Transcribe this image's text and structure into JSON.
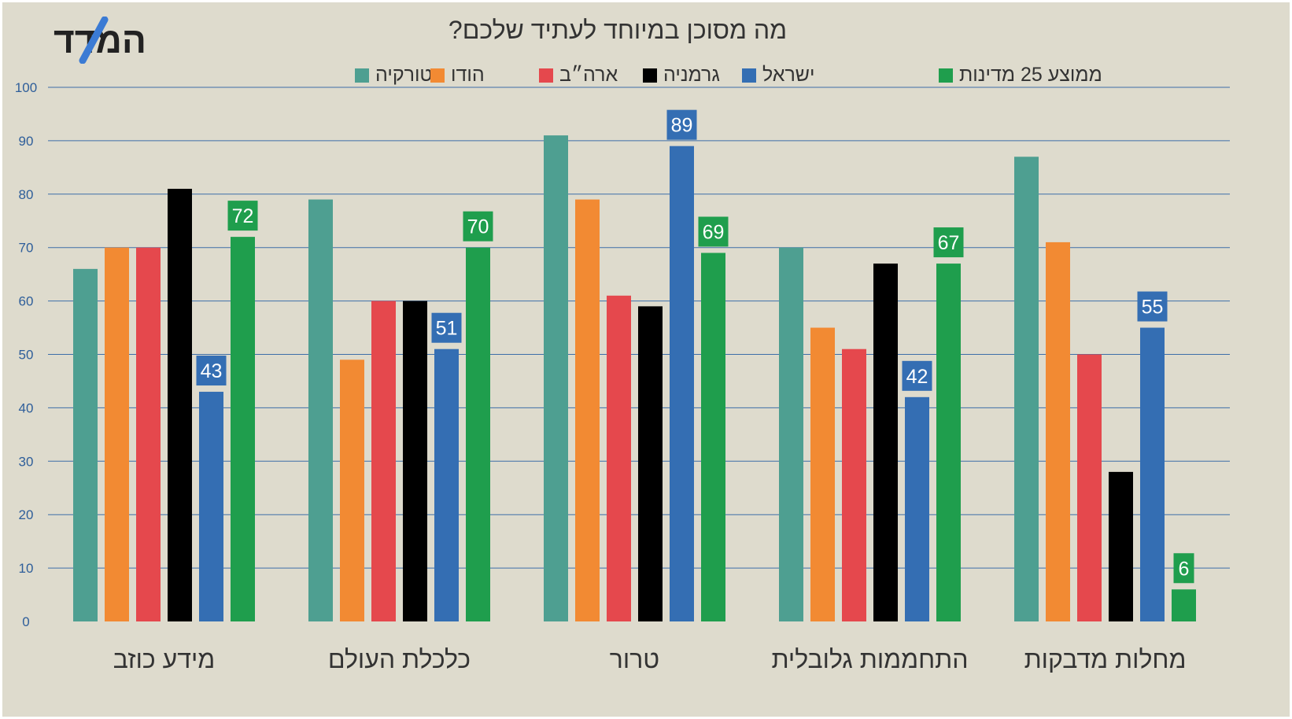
{
  "logo": {
    "text": "המדד",
    "colors": {
      "text": "#222222",
      "accent": "#3b7bd4"
    }
  },
  "chart_data": {
    "type": "bar",
    "title": "מה מסוכן במיוחד לעתיד שלכם?",
    "categories": [
      "מידע כוזב",
      "כלכלת העולם",
      "טרור",
      "התחממות גלובלית",
      "מחלות מדבקות"
    ],
    "series": [
      {
        "name": "טורקיה",
        "color": "#4e9f91",
        "values": [
          66,
          79,
          91,
          70,
          87
        ]
      },
      {
        "name": "הודו",
        "color": "#f28a33",
        "values": [
          70,
          49,
          79,
          55,
          71
        ]
      },
      {
        "name": "ארה״ב",
        "color": "#e5484d",
        "values": [
          70,
          60,
          61,
          51,
          50
        ]
      },
      {
        "name": "גרמניה",
        "color": "#000000",
        "values": [
          81,
          60,
          59,
          67,
          28
        ]
      },
      {
        "name": "ישראל",
        "color": "#346eb3",
        "values": [
          43,
          51,
          89,
          42,
          55
        ],
        "data_labels": true
      },
      {
        "name": "ממוצע 25 מדינות",
        "color": "#1f9e4d",
        "values": [
          72,
          70,
          69,
          67,
          6
        ],
        "data_labels": true
      }
    ],
    "ylim": [
      0,
      100
    ],
    "yticks": [
      0,
      10,
      20,
      30,
      40,
      50,
      60,
      70,
      80,
      90,
      100
    ],
    "grid": true,
    "legend": "top-center",
    "colors": {
      "background": "#dedbcd",
      "gridline": "#3d6ea8",
      "tick_label": "#2e5e9a",
      "text": "#333333"
    }
  }
}
